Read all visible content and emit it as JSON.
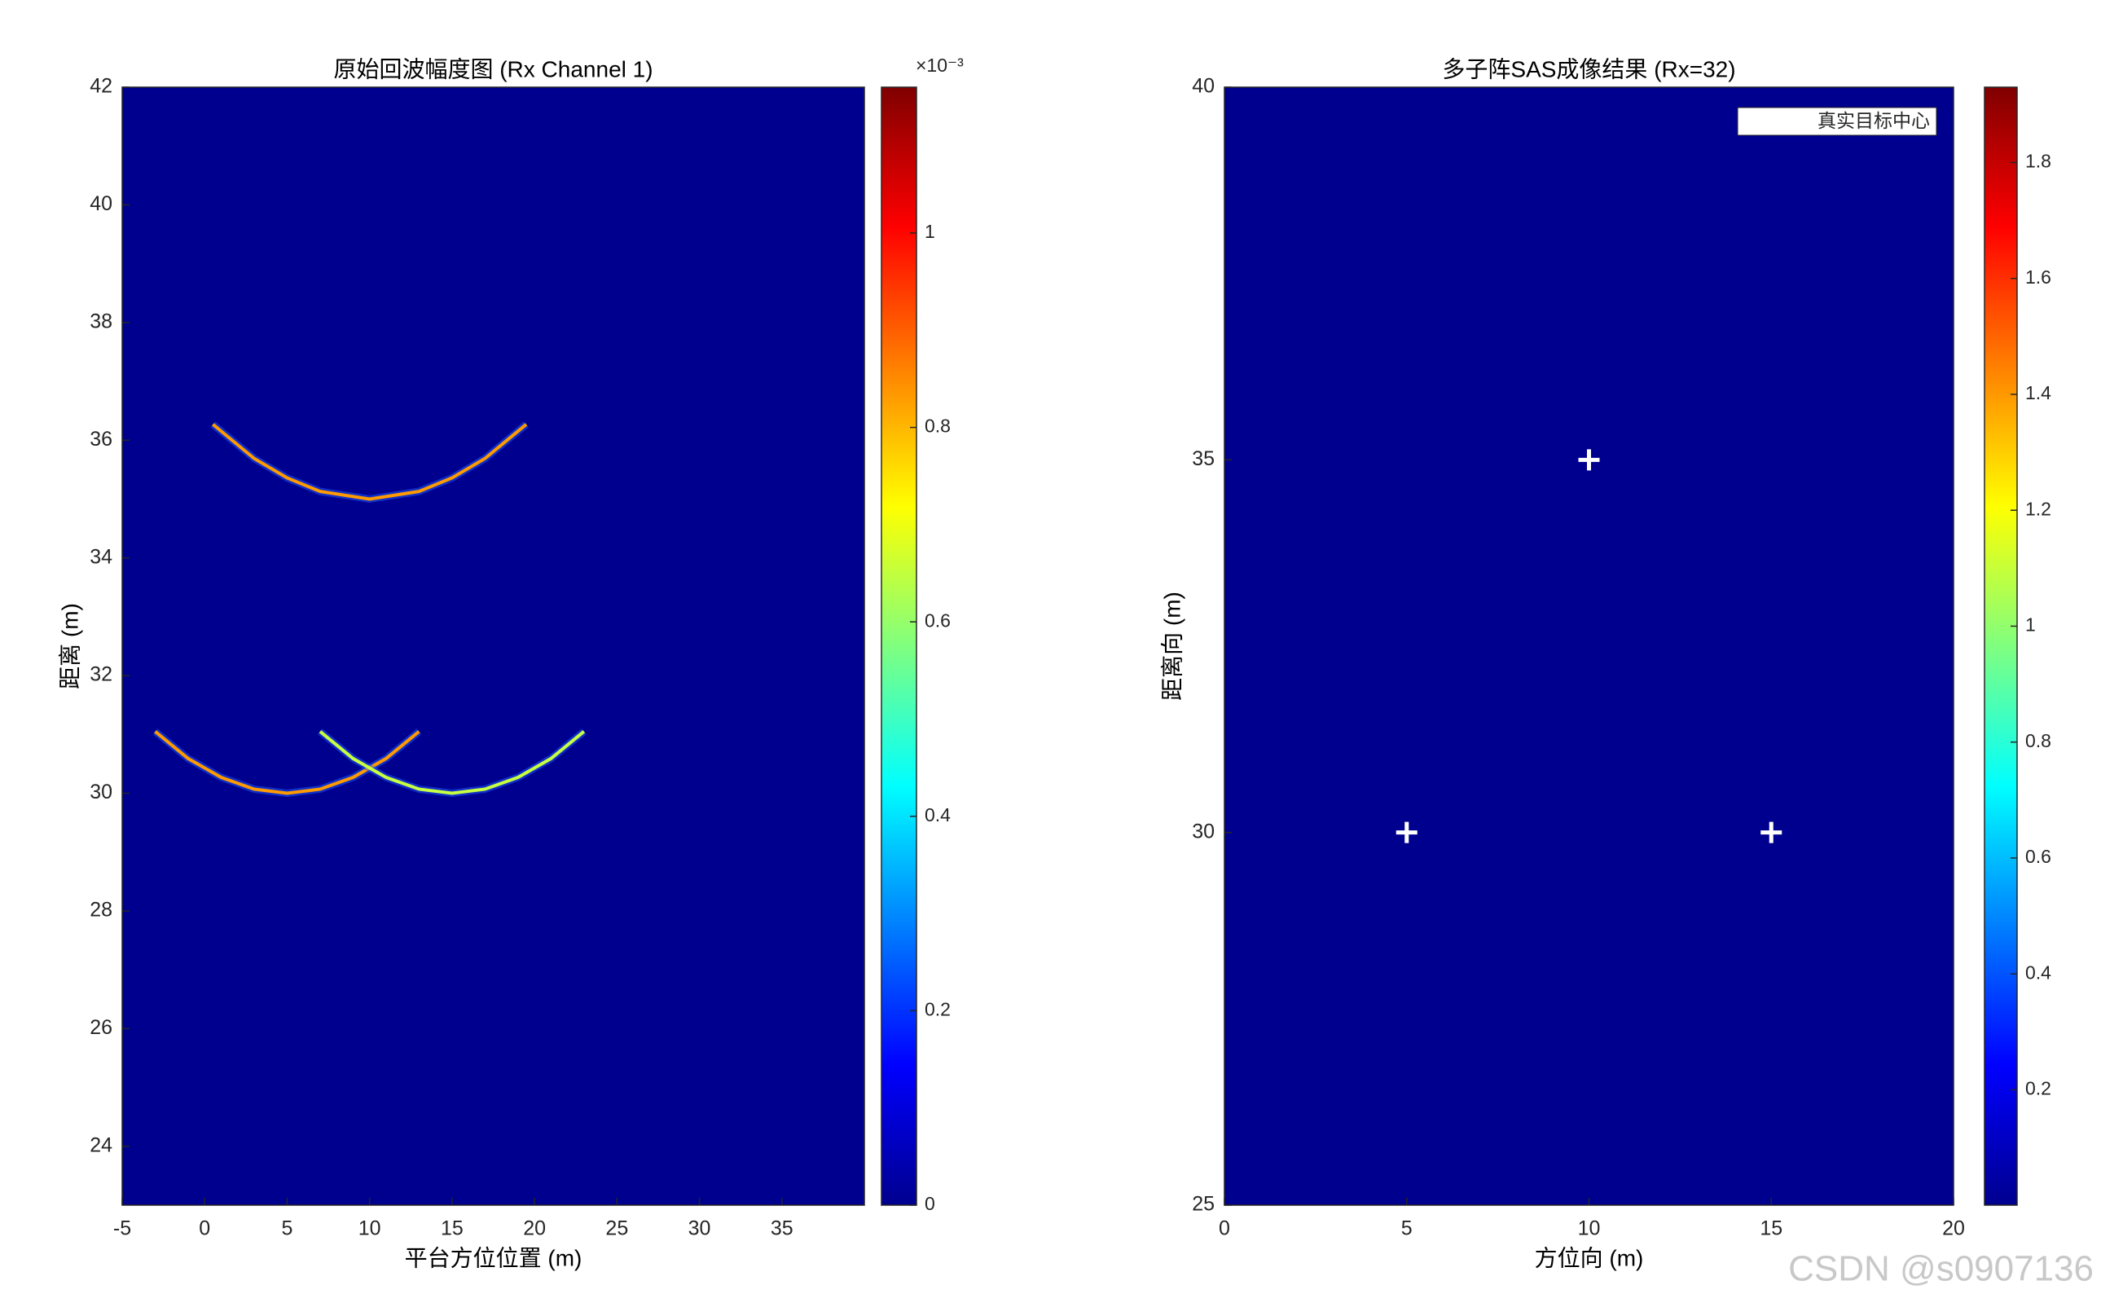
{
  "chart_data": [
    {
      "type": "heatmap",
      "title": "原始回波幅度图 (Rx Channel 1)",
      "xlabel": "平台方位位置 (m)",
      "ylabel": "距离 (m)",
      "xlim": [
        -5,
        40
      ],
      "ylim": [
        23,
        42
      ],
      "xticks": [
        -5,
        0,
        5,
        10,
        15,
        20,
        25,
        30,
        35
      ],
      "yticks": [
        24,
        26,
        28,
        30,
        32,
        34,
        36,
        38,
        40,
        42
      ],
      "background": "#00008f",
      "colormap": "jet",
      "arcs": [
        {
          "color": "#ff9a00",
          "x": [
            0.5,
            3,
            5,
            7,
            10,
            13,
            15,
            17,
            19.5
          ],
          "values": [
            36.27,
            35.69,
            35.36,
            35.13,
            35,
            35.13,
            35.36,
            35.69,
            36.27
          ]
        },
        {
          "color": "#ff9a00",
          "x": [
            -3,
            -1,
            1,
            3,
            5,
            7,
            9,
            11,
            13
          ],
          "values": [
            31.05,
            30.59,
            30.27,
            30.07,
            30,
            30.07,
            30.27,
            30.59,
            31.05
          ]
        },
        {
          "color": "#c8ff40",
          "x": [
            7,
            9,
            11,
            13,
            15,
            17,
            19,
            21,
            23
          ],
          "values": [
            31.05,
            30.59,
            30.27,
            30.07,
            30,
            30.07,
            30.27,
            30.59,
            31.05
          ]
        }
      ],
      "clim": [
        0,
        0.00115
      ],
      "colorbar_exponent": "×10⁻³",
      "cticks": [
        {
          "value": 0,
          "label": "0"
        },
        {
          "value": 0.0002,
          "label": "0.2"
        },
        {
          "value": 0.0004,
          "label": "0.4"
        },
        {
          "value": 0.0006,
          "label": "0.6"
        },
        {
          "value": 0.0008,
          "label": "0.8"
        },
        {
          "value": 0.001,
          "label": "1"
        }
      ]
    },
    {
      "type": "scatter",
      "title": "多子阵SAS成像结果 (Rx=32)",
      "xlabel": "方位向 (m)",
      "ylabel": "距离向 (m)",
      "xlim": [
        0,
        20
      ],
      "ylim": [
        25,
        40
      ],
      "xticks": [
        0,
        5,
        10,
        15,
        20
      ],
      "yticks": [
        25,
        30,
        35,
        40
      ],
      "background": "#00008f",
      "colormap": "jet",
      "series": [
        {
          "name": "真实目标中心",
          "color": "#ffffff",
          "marker": "+",
          "x": [
            5,
            10,
            15
          ],
          "values": [
            30,
            35,
            30
          ]
        }
      ],
      "legend": "northeast",
      "clim": [
        0.001,
        1.93
      ],
      "cticks": [
        0.2,
        0.4,
        0.6,
        0.8,
        1,
        1.2,
        1.4,
        1.6,
        1.8
      ]
    }
  ],
  "watermark": "CSDN @s0907136"
}
